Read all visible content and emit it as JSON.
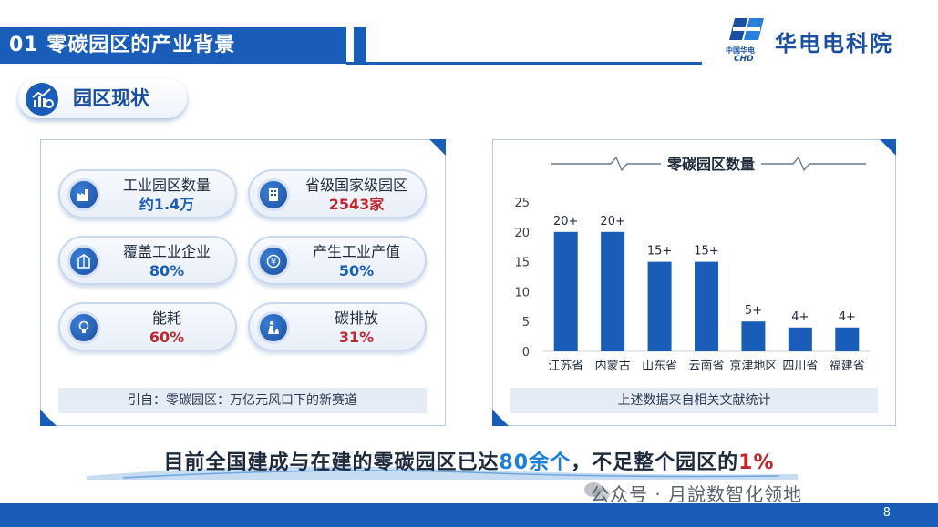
{
  "header": {
    "title": "01 零碳园区的产业背景",
    "logo_cn": "中国华电",
    "logo_en": "CHD",
    "org_name": "华电电科院"
  },
  "section": {
    "label": "园区现状"
  },
  "stats": [
    {
      "label": "工业园区数量",
      "value": "约1.4万",
      "color": "#1a5db8"
    },
    {
      "label": "省级国家级园区",
      "value": "2543家",
      "color": "#c0272d"
    },
    {
      "label": "覆盖工业企业",
      "value": "80%",
      "color": "#1a5db8"
    },
    {
      "label": "产生工业产值",
      "value": "50%",
      "color": "#1a5db8"
    },
    {
      "label": "能耗",
      "value": "60%",
      "color": "#c0272d"
    },
    {
      "label": "碳排放",
      "value": "31%",
      "color": "#c0272d"
    }
  ],
  "left_footer": "引自：零碳园区：万亿元风口下的新赛道",
  "chart_data": {
    "type": "bar",
    "title": "零碳园区数量",
    "categories": [
      "江苏省",
      "内蒙古",
      "山东省",
      "云南省",
      "京津地区",
      "四川省",
      "福建省"
    ],
    "values": [
      20,
      20,
      15,
      15,
      5,
      4,
      4
    ],
    "data_labels": [
      "20+",
      "20+",
      "15+",
      "15+",
      "5+",
      "4+",
      "4+"
    ],
    "yticks": [
      0,
      5,
      10,
      15,
      20,
      25
    ],
    "ylim": [
      0,
      25
    ],
    "xlabel": "",
    "ylabel": "",
    "grid": false,
    "bar_color": "#1a5db8"
  },
  "right_footer": "上述数据来自相关文献统计",
  "bottom": {
    "part1": "目前全国建成与在建的零碳园区已达",
    "part2": "80余个",
    "part3": "，不足整个园区的",
    "part4": "1%"
  },
  "watermark": "公众号 · 月說数智化领地",
  "page_number": "8"
}
